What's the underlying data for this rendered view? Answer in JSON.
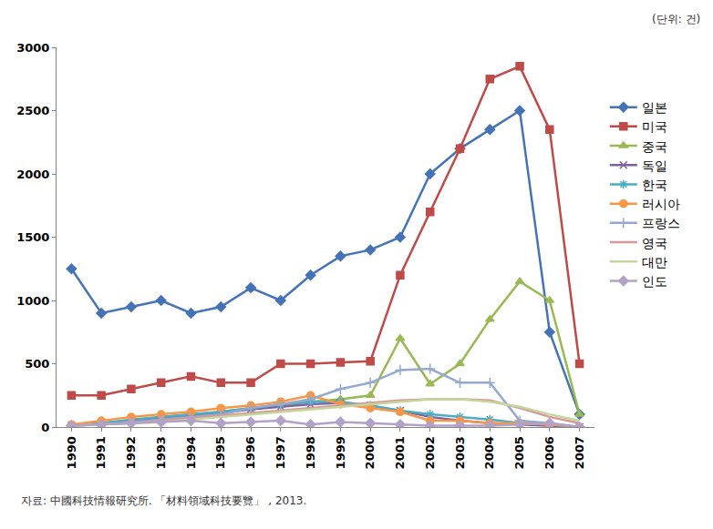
{
  "chart_data": {
    "type": "line",
    "unit": "(단위: 건)",
    "source": "자료: 中國科技情報研究所. 「材料領域科技要覽」 , 2013.",
    "categories": [
      "1990",
      "1991",
      "1992",
      "1993",
      "1994",
      "1995",
      "1996",
      "1997",
      "1998",
      "1999",
      "2000",
      "2001",
      "2002",
      "2003",
      "2004",
      "2005",
      "2006",
      "2007"
    ],
    "ylim": [
      0,
      3000
    ],
    "yticks": [
      0,
      500,
      1000,
      1500,
      2000,
      2500,
      3000
    ],
    "grid": false,
    "legend": "right",
    "series": [
      {
        "name": "일본",
        "color": "#4573b5",
        "marker": "diamond",
        "values": [
          1250,
          900,
          950,
          1000,
          900,
          950,
          1100,
          1000,
          1200,
          1350,
          1400,
          1500,
          2000,
          2200,
          2350,
          2500,
          750,
          100
        ]
      },
      {
        "name": "미국",
        "color": "#be4b48",
        "marker": "square",
        "values": [
          250,
          250,
          300,
          350,
          400,
          350,
          350,
          500,
          500,
          510,
          520,
          1200,
          1700,
          2200,
          2750,
          2850,
          2350,
          500
        ]
      },
      {
        "name": "중국",
        "color": "#98b954",
        "marker": "triangle",
        "values": [
          10,
          30,
          50,
          80,
          100,
          120,
          150,
          170,
          200,
          220,
          250,
          700,
          340,
          500,
          850,
          1150,
          1000,
          100
        ]
      },
      {
        "name": "독일",
        "color": "#7d60a0",
        "marker": "x",
        "values": [
          10,
          30,
          50,
          70,
          90,
          110,
          140,
          160,
          180,
          190,
          170,
          130,
          80,
          50,
          30,
          20,
          10,
          0
        ]
      },
      {
        "name": "한국",
        "color": "#4bacc6",
        "marker": "star",
        "values": [
          10,
          30,
          60,
          80,
          100,
          120,
          150,
          180,
          200,
          200,
          170,
          130,
          100,
          80,
          60,
          30,
          20,
          0
        ]
      },
      {
        "name": "러시아",
        "color": "#f79646",
        "marker": "circle",
        "values": [
          20,
          50,
          80,
          100,
          120,
          150,
          170,
          200,
          250,
          180,
          150,
          120,
          50,
          50,
          30,
          30,
          20,
          0
        ]
      },
      {
        "name": "프랑스",
        "color": "#93a9d0",
        "marker": "plus",
        "values": [
          10,
          20,
          40,
          60,
          80,
          100,
          150,
          180,
          220,
          300,
          350,
          450,
          460,
          350,
          350,
          50,
          30,
          0
        ]
      },
      {
        "name": "영국",
        "color": "#d99694",
        "marker": "none",
        "values": [
          10,
          20,
          30,
          50,
          70,
          90,
          110,
          130,
          150,
          170,
          190,
          210,
          220,
          220,
          210,
          150,
          80,
          30
        ]
      },
      {
        "name": "대만",
        "color": "#c3d69b",
        "marker": "none",
        "values": [
          10,
          20,
          30,
          40,
          60,
          80,
          100,
          120,
          140,
          160,
          180,
          200,
          220,
          220,
          200,
          160,
          100,
          50
        ]
      },
      {
        "name": "인도",
        "color": "#b3a2c7",
        "marker": "diamond",
        "values": [
          10,
          20,
          30,
          40,
          50,
          30,
          40,
          50,
          20,
          40,
          30,
          20,
          10,
          10,
          10,
          20,
          30,
          0
        ]
      }
    ]
  }
}
